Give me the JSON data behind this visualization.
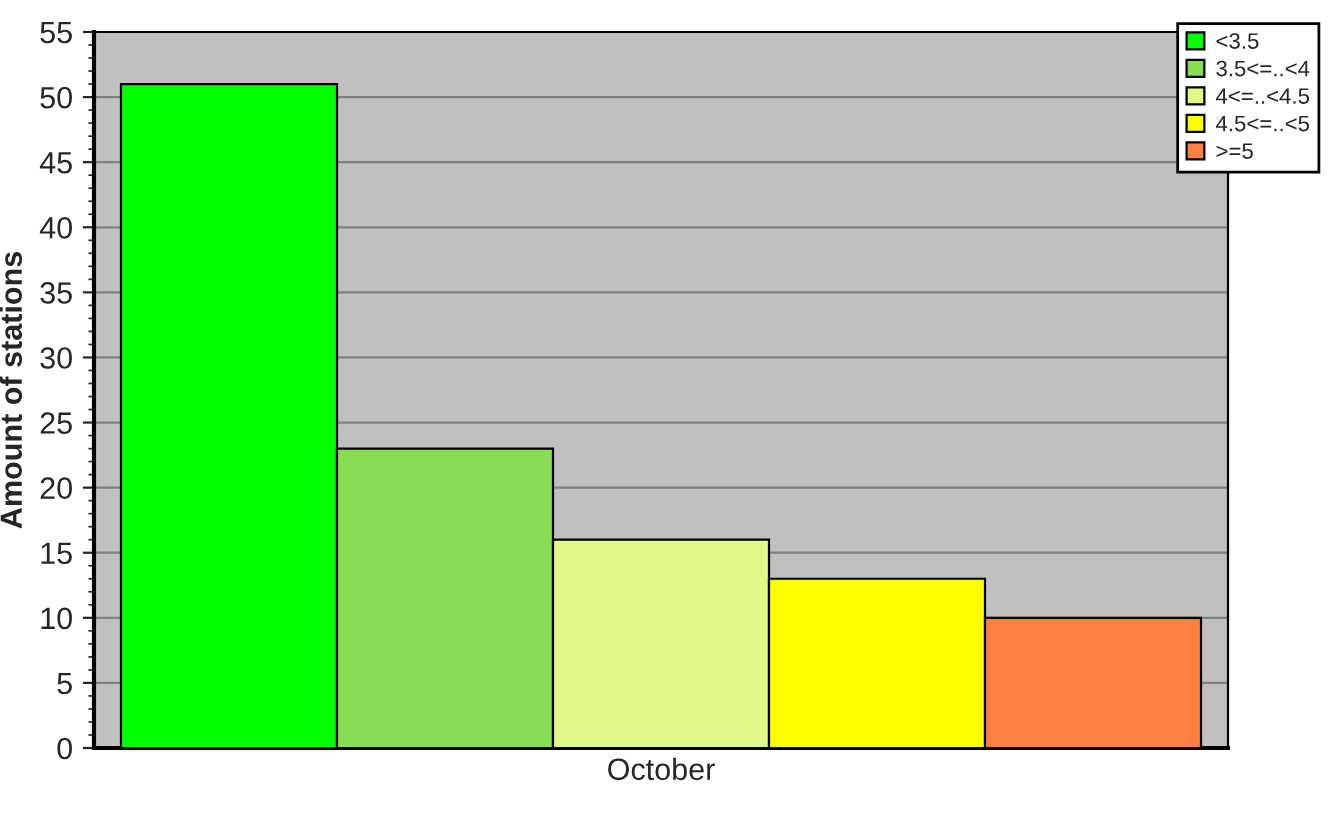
{
  "chart_data": {
    "type": "bar",
    "ylabel": "Amount of stations",
    "categories": [
      "October"
    ],
    "series": [
      {
        "name": "<3.5",
        "color": "#00ff00",
        "values": [
          51
        ]
      },
      {
        "name": "3.5<=..<4",
        "color": "#88dd55",
        "values": [
          23
        ]
      },
      {
        "name": "4<=..<4.5",
        "color": "#e0f888",
        "values": [
          16
        ]
      },
      {
        "name": "4.5<=..<5",
        "color": "#ffff00",
        "values": [
          13
        ]
      },
      {
        "name": ">=5",
        "color": "#ff8040",
        "values": [
          10
        ]
      }
    ],
    "ylim": [
      0,
      55
    ],
    "yticks": [
      0,
      5,
      10,
      15,
      20,
      25,
      30,
      35,
      40,
      45,
      50,
      55
    ],
    "grid": "y",
    "legend": "top right"
  }
}
